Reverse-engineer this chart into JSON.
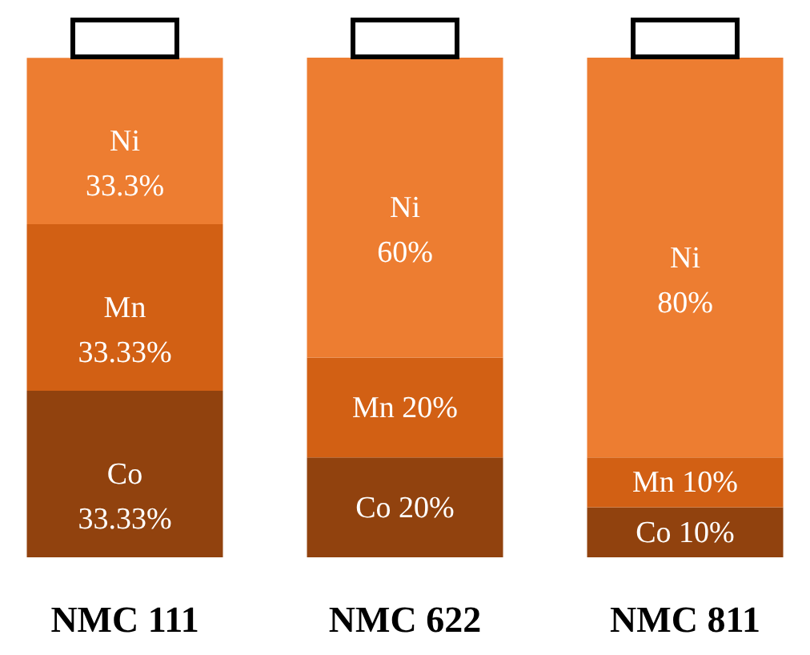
{
  "chart_data": {
    "type": "bar",
    "stacked": true,
    "categories": [
      "NMC 111",
      "NMC 622",
      "NMC 811"
    ],
    "series": [
      {
        "name": "Co",
        "color": "#91420e",
        "values": [
          33.33,
          20,
          10
        ],
        "value_labels": [
          "33.33%",
          "20%",
          "10%"
        ]
      },
      {
        "name": "Mn",
        "color": "#d26014",
        "values": [
          33.33,
          20,
          10
        ],
        "value_labels": [
          "33.33%",
          "20%",
          "10%"
        ]
      },
      {
        "name": "Ni",
        "color": "#ed7d31",
        "values": [
          33.3,
          60,
          80
        ],
        "value_labels": [
          "33.3%",
          "60%",
          "80%"
        ]
      }
    ]
  }
}
